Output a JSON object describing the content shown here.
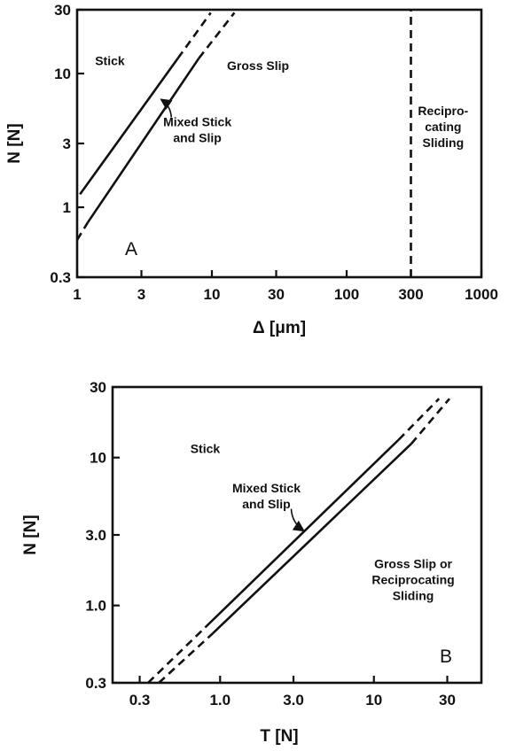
{
  "chart_data": [
    {
      "type": "line",
      "panel_label": "A",
      "xlabel": "Δ [μm]",
      "ylabel": "N [N]",
      "x_scale": "log",
      "y_scale": "log",
      "xlim": [
        1,
        1000
      ],
      "ylim": [
        0.3,
        30
      ],
      "x_ticks": [
        1,
        3,
        10,
        30,
        100,
        300,
        1000
      ],
      "x_tick_labels": [
        "1",
        "3",
        "10",
        "30",
        "100",
        "300",
        "1000"
      ],
      "y_ticks": [
        0.3,
        1,
        3,
        10,
        30
      ],
      "y_tick_labels": [
        "0.3",
        "1",
        "3",
        "10",
        "30"
      ],
      "series": [
        {
          "style": "solid",
          "points": [
            [
              1.05,
              1.25
            ],
            [
              5.6,
              13
            ]
          ]
        },
        {
          "style": "dashed",
          "points": [
            [
              5.6,
              13
            ],
            [
              9.8,
              28.5
            ]
          ]
        },
        {
          "style": "dashed",
          "points": [
            [
              1.0,
              0.57
            ],
            [
              1.2,
              0.77
            ]
          ]
        },
        {
          "style": "solid",
          "points": [
            [
              1.2,
              0.77
            ],
            [
              8.0,
              13
            ]
          ]
        },
        {
          "style": "dashed",
          "points": [
            [
              8.0,
              13
            ],
            [
              14.7,
              28.5
            ]
          ]
        },
        {
          "style": "dashed",
          "points": [
            [
              300,
              0.3
            ],
            [
              300,
              30
            ]
          ]
        }
      ],
      "regions": [
        {
          "lines": [
            "Stick"
          ],
          "at": [
            1.75,
            12.5
          ]
        },
        {
          "lines": [
            "Gross Slip"
          ],
          "at": [
            22,
            11.5
          ]
        },
        {
          "lines": [
            "Mixed Stick",
            "and Slip"
          ],
          "at": [
            7.8,
            3.8
          ]
        },
        {
          "lines": [
            "Recipro-",
            "cating",
            "Sliding"
          ],
          "at": [
            520,
            4.0
          ]
        }
      ],
      "annotation_arrow": {
        "from": [
          5.0,
          4.7
        ],
        "to": [
          4.2,
          6.4
        ]
      }
    },
    {
      "type": "line",
      "panel_label": "B",
      "xlabel": "T [N]",
      "ylabel": "N [N]",
      "x_scale": "log",
      "y_scale": "log",
      "xlim": [
        0.2,
        50
      ],
      "ylim": [
        0.3,
        30
      ],
      "x_ticks": [
        0.3,
        1.0,
        3.0,
        10,
        30
      ],
      "x_tick_labels": [
        "0.3",
        "1.0",
        "3.0",
        "10",
        "30"
      ],
      "y_ticks": [
        0.3,
        1.0,
        3.0,
        10,
        30
      ],
      "y_tick_labels": [
        "0.3",
        "1.0",
        "3.0",
        "10",
        "30"
      ],
      "series": [
        {
          "style": "dashed",
          "points": [
            [
              0.34,
              0.3
            ],
            [
              0.8,
              0.71
            ]
          ]
        },
        {
          "style": "solid",
          "points": [
            [
              0.8,
              0.71
            ],
            [
              14.5,
              13.2
            ]
          ]
        },
        {
          "style": "dashed",
          "points": [
            [
              14.5,
              13.2
            ],
            [
              26.5,
              25
            ]
          ]
        },
        {
          "style": "dashed",
          "points": [
            [
              0.4,
              0.3
            ],
            [
              0.9,
              0.65
            ]
          ]
        },
        {
          "style": "solid",
          "points": [
            [
              0.9,
              0.65
            ],
            [
              17.5,
              12.4
            ]
          ]
        },
        {
          "style": "dashed",
          "points": [
            [
              17.5,
              12.4
            ],
            [
              31,
              25
            ]
          ]
        }
      ],
      "regions": [
        {
          "lines": [
            "Stick"
          ],
          "at": [
            0.8,
            11.5
          ]
        },
        {
          "lines": [
            "Mixed Stick",
            "and Slip"
          ],
          "at": [
            2.0,
            5.5
          ]
        },
        {
          "lines": [
            "Gross Slip or",
            "Reciprocating",
            "Sliding"
          ],
          "at": [
            18,
            1.5
          ]
        }
      ],
      "annotation_arrow": {
        "from": [
          2.9,
          4.5
        ],
        "to": [
          3.5,
          3.2
        ]
      }
    }
  ]
}
